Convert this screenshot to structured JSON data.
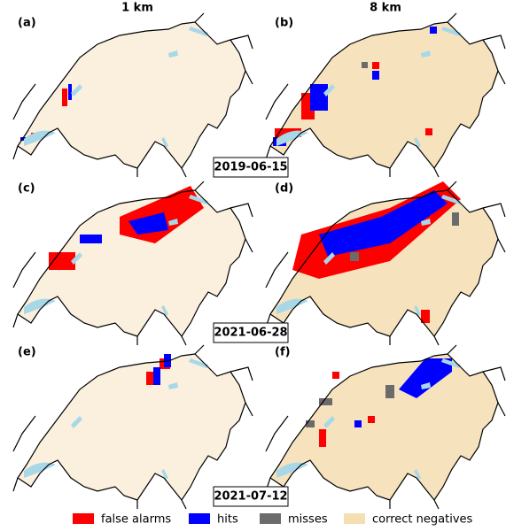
{
  "columns": [
    "1 km",
    "8 km"
  ],
  "panels": [
    "(a)",
    "(b)",
    "(c)",
    "(d)",
    "(e)",
    "(f)"
  ],
  "dates": [
    "2019-06-15",
    "2021-06-28",
    "2021-07-12"
  ],
  "legend": [
    {
      "label": "false alarms",
      "color": "#ff0000"
    },
    {
      "label": "hits",
      "color": "#0000ff"
    },
    {
      "label": "misses",
      "color": "#6b6b6b"
    },
    {
      "label": "correct negatives",
      "color": "#f5deb3"
    }
  ]
}
